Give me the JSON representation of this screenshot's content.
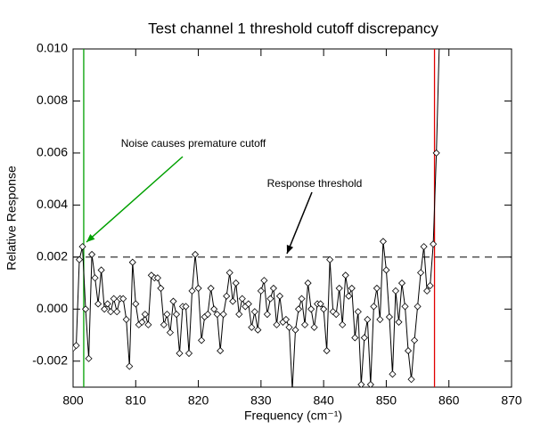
{
  "chart_data": {
    "type": "line",
    "title": "Test channel 1 threshold cutoff discrepancy",
    "xlabel": "Frequency (cm⁻¹)",
    "ylabel": "Relative Response",
    "x": [
      800.0,
      800.5,
      801.0,
      801.5,
      802.0,
      802.5,
      803.0,
      803.5,
      804.0,
      804.5,
      805.0,
      805.5,
      806.0,
      806.5,
      807.0,
      807.5,
      808.0,
      808.5,
      809.0,
      809.5,
      810.0,
      810.5,
      811.0,
      811.5,
      812.0,
      812.5,
      813.0,
      813.5,
      814.0,
      814.5,
      815.0,
      815.5,
      816.0,
      816.5,
      817.0,
      817.5,
      818.0,
      818.5,
      819.0,
      819.5,
      820.0,
      820.5,
      821.0,
      821.5,
      822.0,
      822.5,
      823.0,
      823.5,
      824.0,
      824.5,
      825.0,
      825.5,
      826.0,
      826.5,
      827.0,
      827.5,
      828.0,
      828.5,
      829.0,
      829.5,
      830.0,
      830.5,
      831.0,
      831.5,
      832.0,
      832.5,
      833.0,
      833.5,
      834.0,
      834.5,
      835.0,
      835.5,
      836.0,
      836.5,
      837.0,
      837.5,
      838.0,
      838.5,
      839.0,
      839.5,
      840.0,
      840.5,
      841.0,
      841.5,
      842.0,
      842.5,
      843.0,
      843.5,
      844.0,
      844.5,
      845.0,
      845.5,
      846.0,
      846.5,
      847.0,
      847.5,
      848.0,
      848.5,
      849.0,
      849.5,
      850.0,
      850.5,
      851.0,
      851.5,
      852.0,
      852.5,
      853.0,
      853.5,
      854.0,
      854.5,
      855.0,
      855.5,
      856.0,
      856.5,
      857.0,
      857.5,
      858.0,
      858.5
    ],
    "values": [
      -0.0015,
      -0.0014,
      0.0019,
      0.0024,
      0.0,
      -0.0019,
      0.0021,
      0.0012,
      0.0002,
      0.0015,
      0.0,
      0.0002,
      -0.0001,
      0.0004,
      -0.0001,
      0.0004,
      0.0004,
      -0.0004,
      -0.0022,
      0.0018,
      0.0002,
      -0.0006,
      -0.0005,
      -0.0002,
      -0.0006,
      0.0013,
      0.0012,
      0.0012,
      0.0008,
      -0.0006,
      -0.0002,
      -0.0009,
      0.0003,
      -0.0002,
      -0.0017,
      0.0001,
      0.0001,
      -0.0017,
      0.0007,
      0.0021,
      0.0008,
      -0.0012,
      -0.0003,
      -0.0002,
      0.0008,
      0.0,
      -0.0002,
      -0.0016,
      -0.0002,
      0.0005,
      0.0014,
      0.0003,
      0.001,
      -0.0002,
      0.0004,
      0.0001,
      0.0002,
      -0.0007,
      -0.0001,
      -0.0008,
      0.0007,
      0.0011,
      -0.0002,
      0.0004,
      0.0008,
      -0.0006,
      0.0005,
      -0.0005,
      -0.0004,
      -0.0007,
      -0.0031,
      -0.0008,
      0.0,
      0.0004,
      -0.0006,
      0.001,
      0.0,
      -0.0007,
      0.0002,
      0.0002,
      0.0,
      -0.0016,
      0.0019,
      -0.0001,
      -0.0002,
      0.0008,
      -0.0006,
      0.0013,
      0.0005,
      0.0008,
      -0.0011,
      -0.0001,
      -0.0029,
      -0.0011,
      -0.0004,
      -0.0029,
      0.0001,
      0.0008,
      -0.0004,
      0.0026,
      0.0015,
      -0.0003,
      -0.0025,
      0.0007,
      -0.0005,
      0.001,
      0.0001,
      -0.0016,
      -0.0027,
      -0.0012,
      0.0001,
      0.0014,
      0.0024,
      0.0007,
      0.0009,
      0.0025,
      0.006,
      0.0105
    ],
    "color": "#000000",
    "xlim": [
      800,
      870
    ],
    "xticks": [
      800,
      810,
      820,
      830,
      840,
      850,
      860,
      870
    ],
    "ylim": [
      -0.003,
      0.01
    ],
    "yticks": [
      -0.002,
      {
        "value": 0,
        "label": "0.000"
      },
      0.002,
      0.004,
      0.006,
      0.008,
      {
        "value": 0.01,
        "label": "0.010"
      }
    ],
    "threshold": {
      "y": 0.002,
      "color": "#000000"
    },
    "vlines": [
      {
        "x": 801.7,
        "color": "#00a000"
      },
      {
        "x": 857.7,
        "color": "#e00000"
      }
    ],
    "annotations": [
      {
        "text": "Noise causes premature cutoff",
        "color": "#00a000"
      },
      {
        "text": "Response threshold",
        "color": "#000000"
      }
    ]
  }
}
